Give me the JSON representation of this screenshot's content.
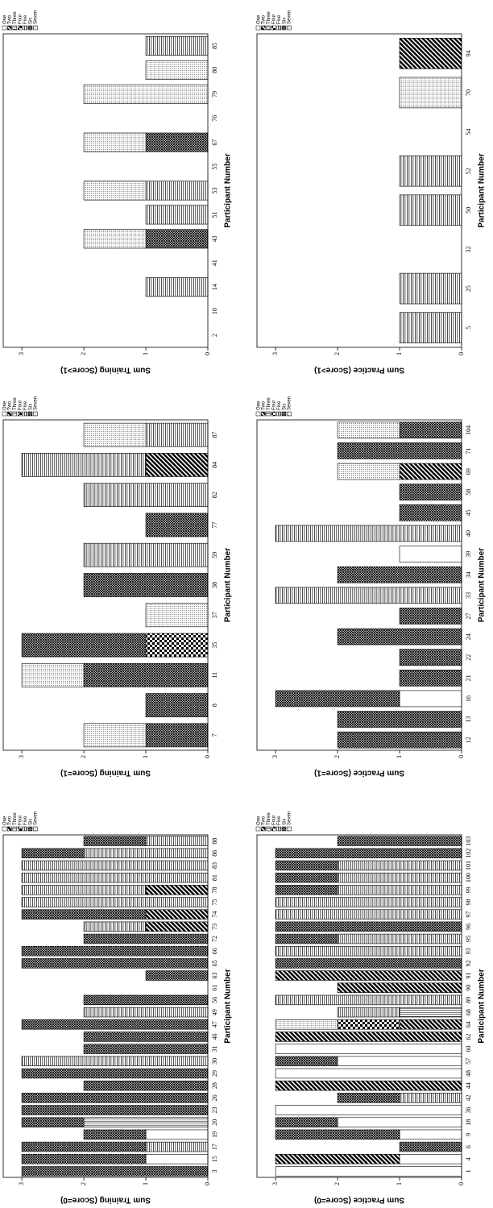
{
  "chart_data": [
    {
      "type": "bar",
      "stacked": true,
      "y_label": "Sum Training (Score=0)",
      "x_label": "Participant Number",
      "ylim": [
        0,
        3.3
      ],
      "yticks": [
        0,
        1,
        2,
        3
      ],
      "categories": [
        "3",
        "15",
        "17",
        "19",
        "20",
        "23",
        "26",
        "28",
        "29",
        "30",
        "31",
        "46",
        "47",
        "49",
        "56",
        "61",
        "63",
        "65",
        "66",
        "72",
        "73",
        "74",
        "75",
        "78",
        "81",
        "83",
        "86",
        "88"
      ],
      "series": [
        {
          "name": "One",
          "pattern": "white",
          "values": [
            0,
            1,
            0,
            1,
            0,
            0,
            0,
            0,
            0,
            0,
            0,
            0,
            0,
            0,
            0,
            0,
            0,
            0,
            0,
            0,
            0,
            0,
            0,
            0,
            0,
            0,
            0,
            0
          ]
        },
        {
          "name": "Two",
          "pattern": "diagonal",
          "values": [
            0,
            0,
            0,
            0,
            0,
            0,
            0,
            0,
            0,
            0,
            0,
            0,
            0,
            0,
            0,
            0,
            0,
            0,
            0,
            0,
            1,
            1,
            0,
            1,
            0,
            0,
            0,
            0
          ]
        },
        {
          "name": "Three",
          "pattern": "vlines",
          "values": [
            0,
            0,
            0,
            0,
            2,
            0,
            0,
            0,
            0,
            0,
            0,
            0,
            0,
            0,
            0,
            0,
            0,
            0,
            0,
            0,
            0,
            0,
            0,
            0,
            0,
            0,
            0,
            0
          ]
        },
        {
          "name": "Four",
          "pattern": "checker",
          "values": [
            0,
            0,
            0,
            0,
            0,
            0,
            0,
            0,
            0,
            0,
            0,
            0,
            0,
            0,
            0,
            0,
            0,
            0,
            0,
            0,
            0,
            0,
            0,
            0,
            0,
            0,
            0,
            0
          ]
        },
        {
          "name": "Five",
          "pattern": "hlines",
          "values": [
            0,
            0,
            1,
            0,
            0,
            0,
            0,
            0,
            0,
            3,
            0,
            0,
            0,
            2,
            0,
            0,
            0,
            0,
            0,
            0,
            1,
            0,
            3,
            2,
            3,
            3,
            2,
            1
          ]
        },
        {
          "name": "Six",
          "pattern": "crosshatch",
          "values": [
            3,
            2,
            2,
            1,
            1,
            3,
            3,
            2,
            3,
            0,
            2,
            2,
            3,
            0,
            2,
            0,
            1,
            3,
            3,
            2,
            0,
            2,
            0,
            0,
            0,
            0,
            1,
            1
          ]
        },
        {
          "name": "Seven",
          "pattern": "dots",
          "values": [
            0,
            0,
            0,
            0,
            0,
            0,
            0,
            0,
            0,
            0,
            0,
            0,
            0,
            0,
            0,
            0,
            0,
            0,
            0,
            0,
            0,
            0,
            0,
            0,
            0,
            0,
            0,
            0
          ]
        }
      ]
    },
    {
      "type": "bar",
      "stacked": true,
      "y_label": "Sum Training (Score=1)",
      "x_label": "Participant Number",
      "ylim": [
        0,
        3.3
      ],
      "yticks": [
        0,
        1,
        2,
        3
      ],
      "categories": [
        "7",
        "8",
        "11",
        "35",
        "37",
        "38",
        "59",
        "77",
        "82",
        "84",
        "87"
      ],
      "series": [
        {
          "name": "One",
          "pattern": "white",
          "values": [
            0,
            0,
            0,
            0,
            0,
            0,
            0,
            0,
            0,
            0,
            0
          ]
        },
        {
          "name": "Two",
          "pattern": "diagonal",
          "values": [
            0,
            0,
            0,
            0,
            0,
            0,
            0,
            0,
            0,
            1,
            0
          ]
        },
        {
          "name": "Three",
          "pattern": "vlines",
          "values": [
            0,
            0,
            0,
            0,
            0,
            0,
            0,
            0,
            0,
            0,
            0
          ]
        },
        {
          "name": "Four",
          "pattern": "checker",
          "values": [
            0,
            0,
            0,
            1,
            0,
            0,
            0,
            0,
            0,
            0,
            0
          ]
        },
        {
          "name": "Five",
          "pattern": "hlines",
          "values": [
            0,
            0,
            0,
            0,
            0,
            0,
            2,
            0,
            2,
            2,
            1
          ]
        },
        {
          "name": "Six",
          "pattern": "crosshatch",
          "values": [
            1,
            1,
            2,
            2,
            0,
            2,
            0,
            1,
            0,
            0,
            0
          ]
        },
        {
          "name": "Seven",
          "pattern": "dots",
          "values": [
            1,
            0,
            1,
            0,
            1,
            0,
            0,
            0,
            0,
            0,
            1
          ]
        }
      ]
    },
    {
      "type": "bar",
      "stacked": true,
      "y_label": "Sum Training (Score>1)",
      "x_label": "Participant Number",
      "ylim": [
        0,
        3.3
      ],
      "yticks": [
        0,
        1,
        2,
        3
      ],
      "categories": [
        "2",
        "10",
        "14",
        "41",
        "43",
        "51",
        "53",
        "55",
        "67",
        "76",
        "79",
        "80",
        "85"
      ],
      "series": [
        {
          "name": "One",
          "pattern": "white",
          "values": [
            0,
            0,
            0,
            0,
            0,
            0,
            0,
            0,
            0,
            0,
            0,
            0,
            0
          ]
        },
        {
          "name": "Two",
          "pattern": "diagonal",
          "values": [
            0,
            0,
            0,
            0,
            0,
            0,
            0,
            0,
            0,
            0,
            0,
            0,
            0
          ]
        },
        {
          "name": "Three",
          "pattern": "vlines",
          "values": [
            0,
            0,
            0,
            0,
            0,
            0,
            0,
            0,
            0,
            0,
            0,
            0,
            0
          ]
        },
        {
          "name": "Four",
          "pattern": "checker",
          "values": [
            0,
            0,
            0,
            0,
            0,
            0,
            0,
            0,
            0,
            0,
            0,
            0,
            0
          ]
        },
        {
          "name": "Five",
          "pattern": "hlines",
          "values": [
            0,
            0,
            1,
            0,
            0,
            1,
            1,
            0,
            0,
            0,
            0,
            0,
            1
          ]
        },
        {
          "name": "Six",
          "pattern": "crosshatch",
          "values": [
            0,
            0,
            0,
            0,
            1,
            0,
            0,
            0,
            1,
            0,
            0,
            0,
            0
          ]
        },
        {
          "name": "Seven",
          "pattern": "dots",
          "values": [
            0,
            0,
            0,
            0,
            1,
            0,
            1,
            0,
            1,
            0,
            2,
            1,
            0
          ]
        }
      ]
    },
    {
      "type": "bar",
      "stacked": true,
      "y_label": "Sum Practice (Score=0)",
      "x_label": "Participant Number",
      "ylim": [
        0,
        3.3
      ],
      "yticks": [
        0,
        1,
        2,
        3
      ],
      "categories": [
        "1",
        "4",
        "6",
        "9",
        "18",
        "36",
        "42",
        "44",
        "48",
        "57",
        "60",
        "62",
        "64",
        "68",
        "89",
        "90",
        "91",
        "92",
        "93",
        "95",
        "96",
        "97",
        "98",
        "99",
        "100",
        "101",
        "102",
        "103"
      ],
      "series": [
        {
          "name": "One",
          "pattern": "white",
          "values": [
            3,
            1,
            0,
            1,
            2,
            3,
            0,
            0,
            3,
            2,
            3,
            0,
            0,
            0,
            0,
            0,
            0,
            0,
            0,
            0,
            0,
            0,
            0,
            0,
            0,
            0,
            0,
            0
          ]
        },
        {
          "name": "Two",
          "pattern": "diagonal",
          "values": [
            0,
            2,
            0,
            0,
            0,
            0,
            0,
            3,
            0,
            0,
            0,
            3,
            1,
            0,
            0,
            2,
            3,
            0,
            0,
            0,
            0,
            0,
            0,
            0,
            0,
            0,
            0,
            0
          ]
        },
        {
          "name": "Three",
          "pattern": "vlines",
          "values": [
            0,
            0,
            0,
            0,
            0,
            0,
            0,
            0,
            0,
            0,
            0,
            0,
            0,
            1,
            0,
            0,
            0,
            0,
            0,
            0,
            0,
            0,
            0,
            0,
            0,
            0,
            0,
            0
          ]
        },
        {
          "name": "Four",
          "pattern": "checker",
          "values": [
            0,
            0,
            0,
            0,
            0,
            0,
            0,
            0,
            0,
            0,
            0,
            0,
            1,
            0,
            0,
            0,
            0,
            0,
            0,
            0,
            0,
            0,
            0,
            0,
            0,
            0,
            0,
            0
          ]
        },
        {
          "name": "Five",
          "pattern": "hlines",
          "values": [
            0,
            0,
            0,
            0,
            0,
            0,
            1,
            0,
            0,
            0,
            0,
            0,
            0,
            1,
            3,
            0,
            0,
            0,
            3,
            2,
            0,
            3,
            3,
            2,
            2,
            2,
            0,
            0
          ]
        },
        {
          "name": "Six",
          "pattern": "crosshatch",
          "values": [
            0,
            0,
            1,
            2,
            1,
            0,
            1,
            0,
            0,
            1,
            0,
            0,
            0,
            0,
            0,
            0,
            0,
            3,
            0,
            1,
            3,
            0,
            0,
            1,
            1,
            1,
            3,
            2
          ]
        },
        {
          "name": "Seven",
          "pattern": "dots",
          "values": [
            0,
            0,
            0,
            0,
            0,
            0,
            0,
            0,
            0,
            0,
            0,
            0,
            1,
            0,
            0,
            0,
            0,
            0,
            0,
            0,
            0,
            0,
            0,
            0,
            0,
            0,
            0,
            0
          ]
        }
      ]
    },
    {
      "type": "bar",
      "stacked": true,
      "y_label": "Sum Practice (Score=1)",
      "x_label": "Participant Number",
      "ylim": [
        0,
        3.3
      ],
      "yticks": [
        0,
        1,
        2,
        3
      ],
      "categories": [
        "12",
        "13",
        "16",
        "21",
        "22",
        "24",
        "27",
        "33",
        "34",
        "39",
        "40",
        "45",
        "58",
        "69",
        "71",
        "104"
      ],
      "series": [
        {
          "name": "One",
          "pattern": "white",
          "values": [
            0,
            0,
            1,
            0,
            0,
            0,
            0,
            0,
            0,
            1,
            0,
            0,
            0,
            0,
            0,
            0
          ]
        },
        {
          "name": "Two",
          "pattern": "diagonal",
          "values": [
            0,
            0,
            0,
            0,
            0,
            0,
            0,
            0,
            0,
            0,
            0,
            0,
            0,
            1,
            0,
            0
          ]
        },
        {
          "name": "Three",
          "pattern": "vlines",
          "values": [
            0,
            0,
            0,
            0,
            0,
            0,
            0,
            0,
            0,
            0,
            0,
            0,
            0,
            0,
            0,
            0
          ]
        },
        {
          "name": "Four",
          "pattern": "checker",
          "values": [
            0,
            0,
            0,
            0,
            0,
            0,
            0,
            0,
            0,
            0,
            0,
            0,
            0,
            0,
            0,
            0
          ]
        },
        {
          "name": "Five",
          "pattern": "hlines",
          "values": [
            0,
            0,
            0,
            0,
            0,
            0,
            0,
            3,
            0,
            0,
            3,
            0,
            0,
            0,
            0,
            0
          ]
        },
        {
          "name": "Six",
          "pattern": "crosshatch",
          "values": [
            2,
            2,
            2,
            1,
            1,
            2,
            1,
            0,
            2,
            0,
            0,
            1,
            1,
            0,
            2,
            1
          ]
        },
        {
          "name": "Seven",
          "pattern": "dots",
          "values": [
            0,
            0,
            0,
            0,
            0,
            0,
            0,
            0,
            0,
            0,
            0,
            0,
            0,
            1,
            0,
            1
          ]
        }
      ]
    },
    {
      "type": "bar",
      "stacked": true,
      "y_label": "Sum Practice (Score>1)",
      "x_label": "Participant Number",
      "ylim": [
        0,
        3.3
      ],
      "yticks": [
        0,
        1,
        2,
        3
      ],
      "categories": [
        "5",
        "25",
        "32",
        "50",
        "52",
        "54",
        "70",
        "94"
      ],
      "series": [
        {
          "name": "One",
          "pattern": "white",
          "values": [
            0,
            0,
            0,
            0,
            0,
            0,
            0,
            0
          ]
        },
        {
          "name": "Two",
          "pattern": "diagonal",
          "values": [
            0,
            0,
            0,
            0,
            0,
            0,
            0,
            1
          ]
        },
        {
          "name": "Three",
          "pattern": "vlines",
          "values": [
            0,
            0,
            0,
            0,
            0,
            0,
            0,
            0
          ]
        },
        {
          "name": "Four",
          "pattern": "checker",
          "values": [
            0,
            0,
            0,
            0,
            0,
            0,
            0,
            0
          ]
        },
        {
          "name": "Five",
          "pattern": "hlines",
          "values": [
            1,
            1,
            0,
            1,
            1,
            0,
            0,
            0
          ]
        },
        {
          "name": "Six",
          "pattern": "crosshatch",
          "values": [
            0,
            0,
            0,
            0,
            0,
            0,
            0,
            0
          ]
        },
        {
          "name": "Seven",
          "pattern": "dots",
          "values": [
            0,
            0,
            0,
            0,
            0,
            0,
            1,
            0
          ]
        }
      ]
    }
  ]
}
